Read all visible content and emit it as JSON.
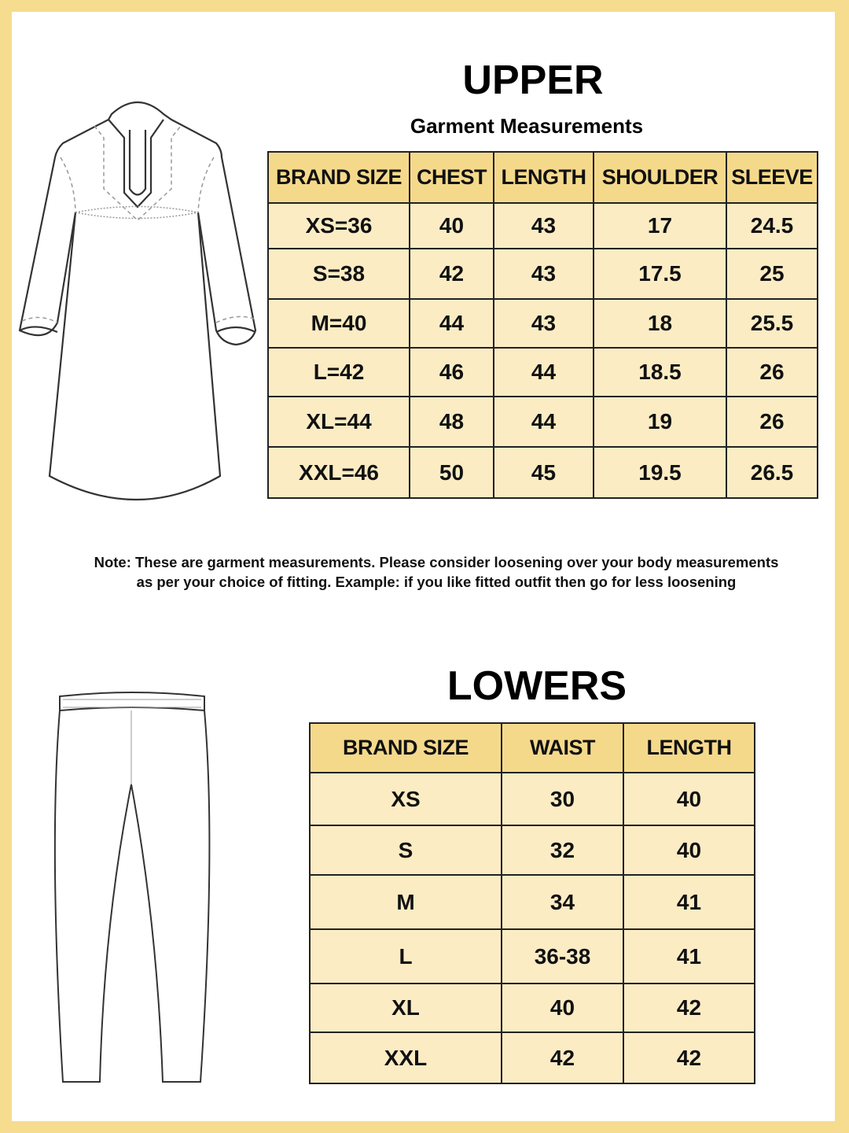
{
  "upper": {
    "title": "UPPER",
    "subtitle": "Garment Measurements",
    "headers": [
      "BRAND SIZE",
      "CHEST",
      "LENGTH",
      "SHOULDER",
      "SLEEVE"
    ],
    "rows": [
      [
        "XS=36",
        "40",
        "43",
        "17",
        "24.5"
      ],
      [
        "S=38",
        "42",
        "43",
        "17.5",
        "25"
      ],
      [
        "M=40",
        "44",
        "43",
        "18",
        "25.5"
      ],
      [
        "L=42",
        "46",
        "44",
        "18.5",
        "26"
      ],
      [
        "XL=44",
        "48",
        "44",
        "19",
        "26"
      ],
      [
        "XXL=46",
        "50",
        "45",
        "19.5",
        "26.5"
      ]
    ]
  },
  "note": {
    "line1": "Note: These are garment measurements. Please consider loosening over your body measurements",
    "line2": "as per your choice of fitting. Example: if you like fitted outfit then go for less loosening"
  },
  "lowers": {
    "title": "LOWERS",
    "headers": [
      "BRAND SIZE",
      "WAIST",
      "LENGTH"
    ],
    "rows": [
      [
        "XS",
        "30",
        "40"
      ],
      [
        "S",
        "32",
        "40"
      ],
      [
        "M",
        "34",
        "41"
      ],
      [
        "L",
        "36-38",
        "41"
      ],
      [
        "XL",
        "40",
        "42"
      ],
      [
        "XXL",
        "42",
        "42"
      ]
    ]
  },
  "colors": {
    "border": "#f6dc8e",
    "header": "#f5d98b",
    "row": "#fbecc4"
  },
  "icons": [
    "kurta-illustration",
    "pants-illustration"
  ]
}
